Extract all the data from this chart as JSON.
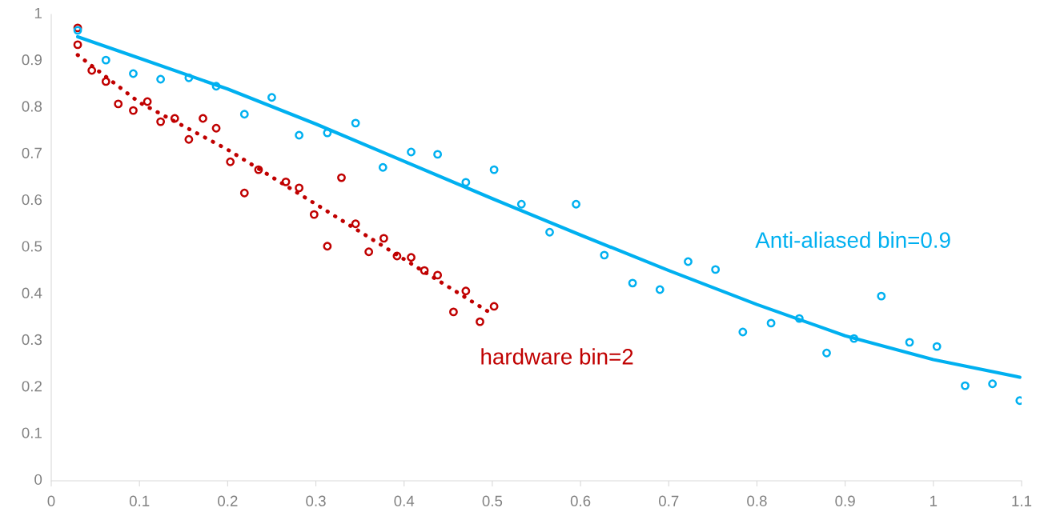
{
  "chart_data": {
    "type": "scatter",
    "xlim": [
      0,
      1.1
    ],
    "ylim": [
      0,
      1
    ],
    "xticks": [
      0,
      0.1,
      0.2,
      0.3,
      0.4,
      0.5,
      0.6,
      0.7,
      0.8,
      0.9,
      1,
      1.1
    ],
    "yticks": [
      0,
      0.1,
      0.2,
      0.3,
      0.4,
      0.5,
      0.6,
      0.7,
      0.8,
      0.9,
      1
    ],
    "grid": false,
    "legend": false,
    "series": [
      {
        "marker": "circle",
        "color": "#00b0f0",
        "x": [
          0.03,
          0.062,
          0.093,
          0.124,
          0.156,
          0.187,
          0.219,
          0.25,
          0.281,
          0.313,
          0.345,
          0.376,
          0.408,
          0.438,
          0.47,
          0.502,
          0.533,
          0.565,
          0.595,
          0.627,
          0.659,
          0.69,
          0.722,
          0.753,
          0.784,
          0.816,
          0.848,
          0.879,
          0.91,
          0.941,
          0.973,
          1.004,
          1.036,
          1.067,
          1.098
        ],
        "values": [
          0.966,
          0.902,
          0.873,
          0.861,
          0.864,
          0.846,
          0.786,
          0.822,
          0.741,
          0.746,
          0.767,
          0.672,
          0.705,
          0.7,
          0.64,
          0.667,
          0.593,
          0.533,
          0.593,
          0.484,
          0.424,
          0.41,
          0.47,
          0.453,
          0.319,
          0.338,
          0.348,
          0.274,
          0.305,
          0.396,
          0.297,
          0.288,
          0.204,
          0.208,
          0.172
        ]
      },
      {
        "marker": "circle",
        "color": "#c00000",
        "x": [
          0.03,
          0.03,
          0.046,
          0.062,
          0.076,
          0.093,
          0.109,
          0.124,
          0.14,
          0.156,
          0.172,
          0.187,
          0.203,
          0.219,
          0.235,
          0.266,
          0.281,
          0.298,
          0.313,
          0.329,
          0.345,
          0.36,
          0.377,
          0.392,
          0.408,
          0.423,
          0.438,
          0.456,
          0.47,
          0.486,
          0.502
        ],
        "values": [
          0.971,
          0.935,
          0.88,
          0.856,
          0.808,
          0.794,
          0.813,
          0.77,
          0.777,
          0.732,
          0.777,
          0.756,
          0.684,
          0.617,
          0.667,
          0.641,
          0.628,
          0.571,
          0.503,
          0.65,
          0.551,
          0.491,
          0.52,
          0.482,
          0.479,
          0.451,
          0.441,
          0.362,
          0.407,
          0.341,
          0.374
        ]
      },
      {
        "type": "line",
        "name": "Anti-aliased bin=0.9",
        "line_style": "solid",
        "color": "#00b0f0",
        "x": [
          0.03,
          0.1,
          0.2,
          0.3,
          0.4,
          0.5,
          0.6,
          0.7,
          0.8,
          0.9,
          1.0,
          1.098
        ],
        "values": [
          0.952,
          0.906,
          0.84,
          0.765,
          0.685,
          0.605,
          0.527,
          0.451,
          0.378,
          0.311,
          0.26,
          0.222
        ]
      },
      {
        "type": "line",
        "name": "hardware bin=2",
        "line_style": "dotted",
        "color": "#c00000",
        "x": [
          0.03,
          0.1,
          0.2,
          0.3,
          0.4,
          0.496
        ],
        "values": [
          0.913,
          0.811,
          0.71,
          0.593,
          0.475,
          0.362
        ]
      }
    ]
  }
}
